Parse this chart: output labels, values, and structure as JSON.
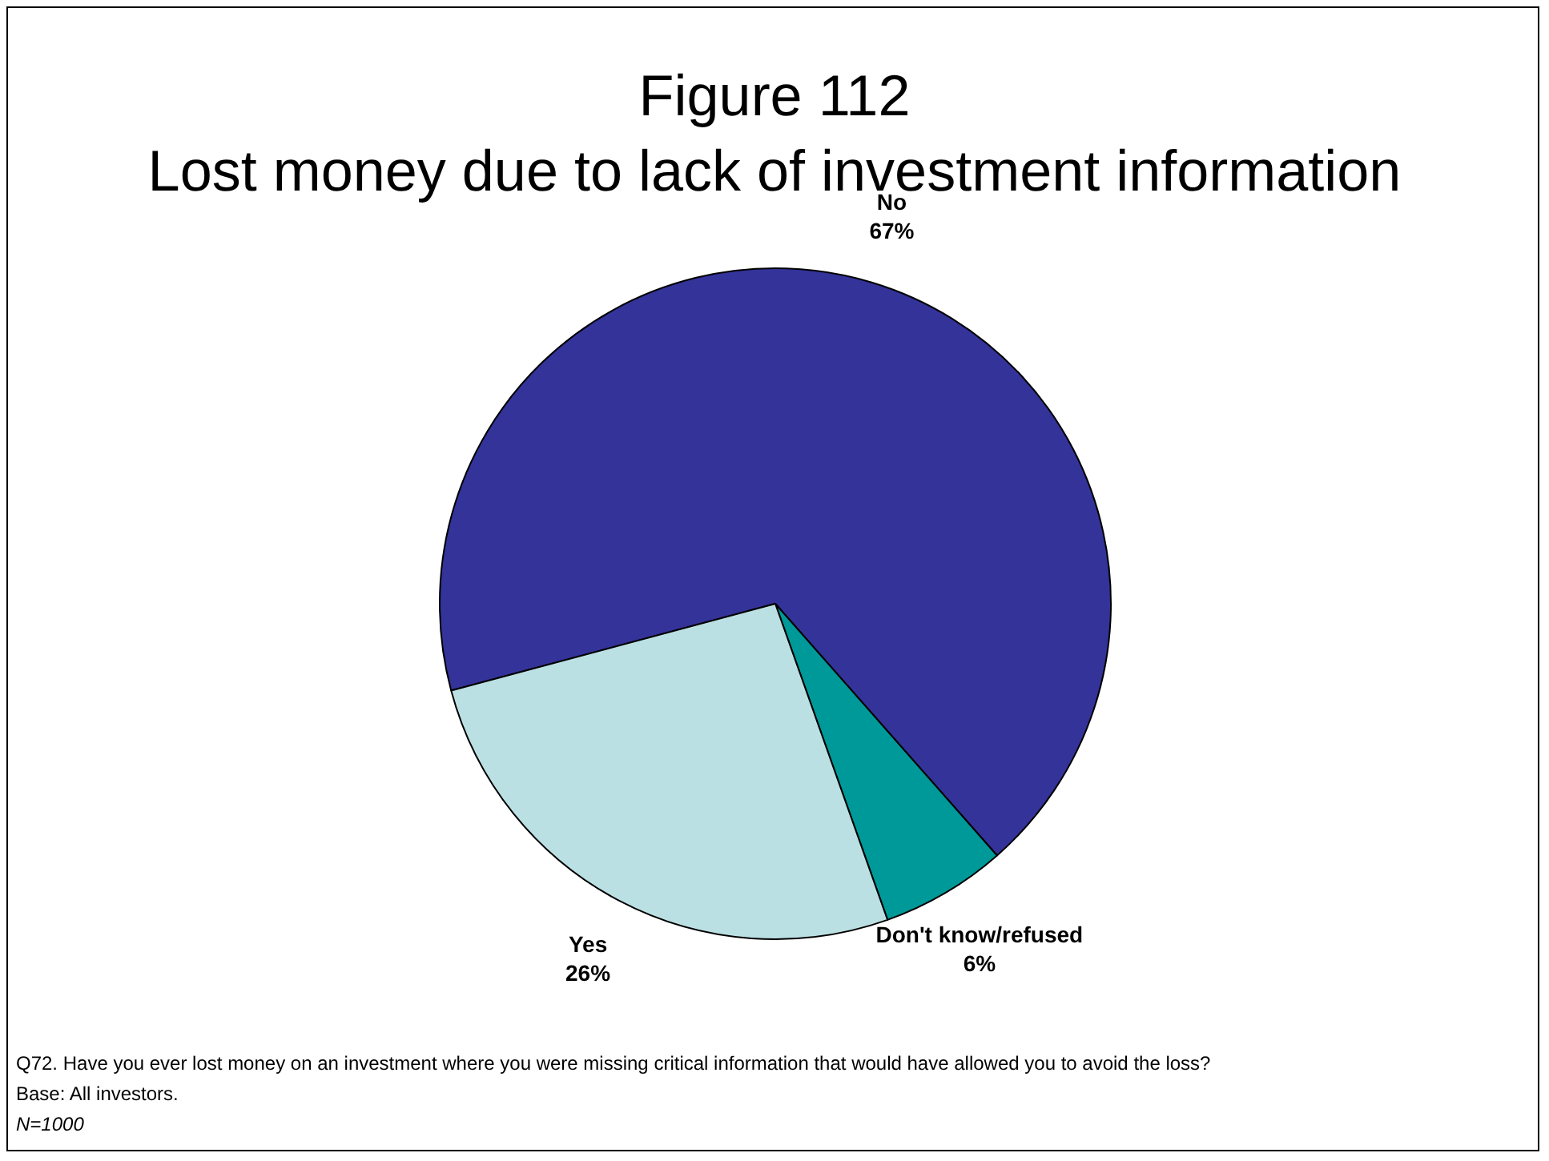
{
  "chart_data": {
    "type": "pie",
    "title": "Figure 112\nLost money due to lack of investment information",
    "categories": [
      "No",
      "Don't know/refused",
      "Yes"
    ],
    "values": [
      67,
      6,
      26
    ],
    "colors": [
      "#333399",
      "#009999",
      "#bbe0e3"
    ],
    "value_labels": [
      "67%",
      "6%",
      "26%"
    ],
    "legend": false,
    "annotations": [
      "Q72. Have you ever lost money on an investment where you were missing critical information that would have allowed you to avoid the loss?",
      "Base: All investors.",
      "N=1000"
    ]
  }
}
